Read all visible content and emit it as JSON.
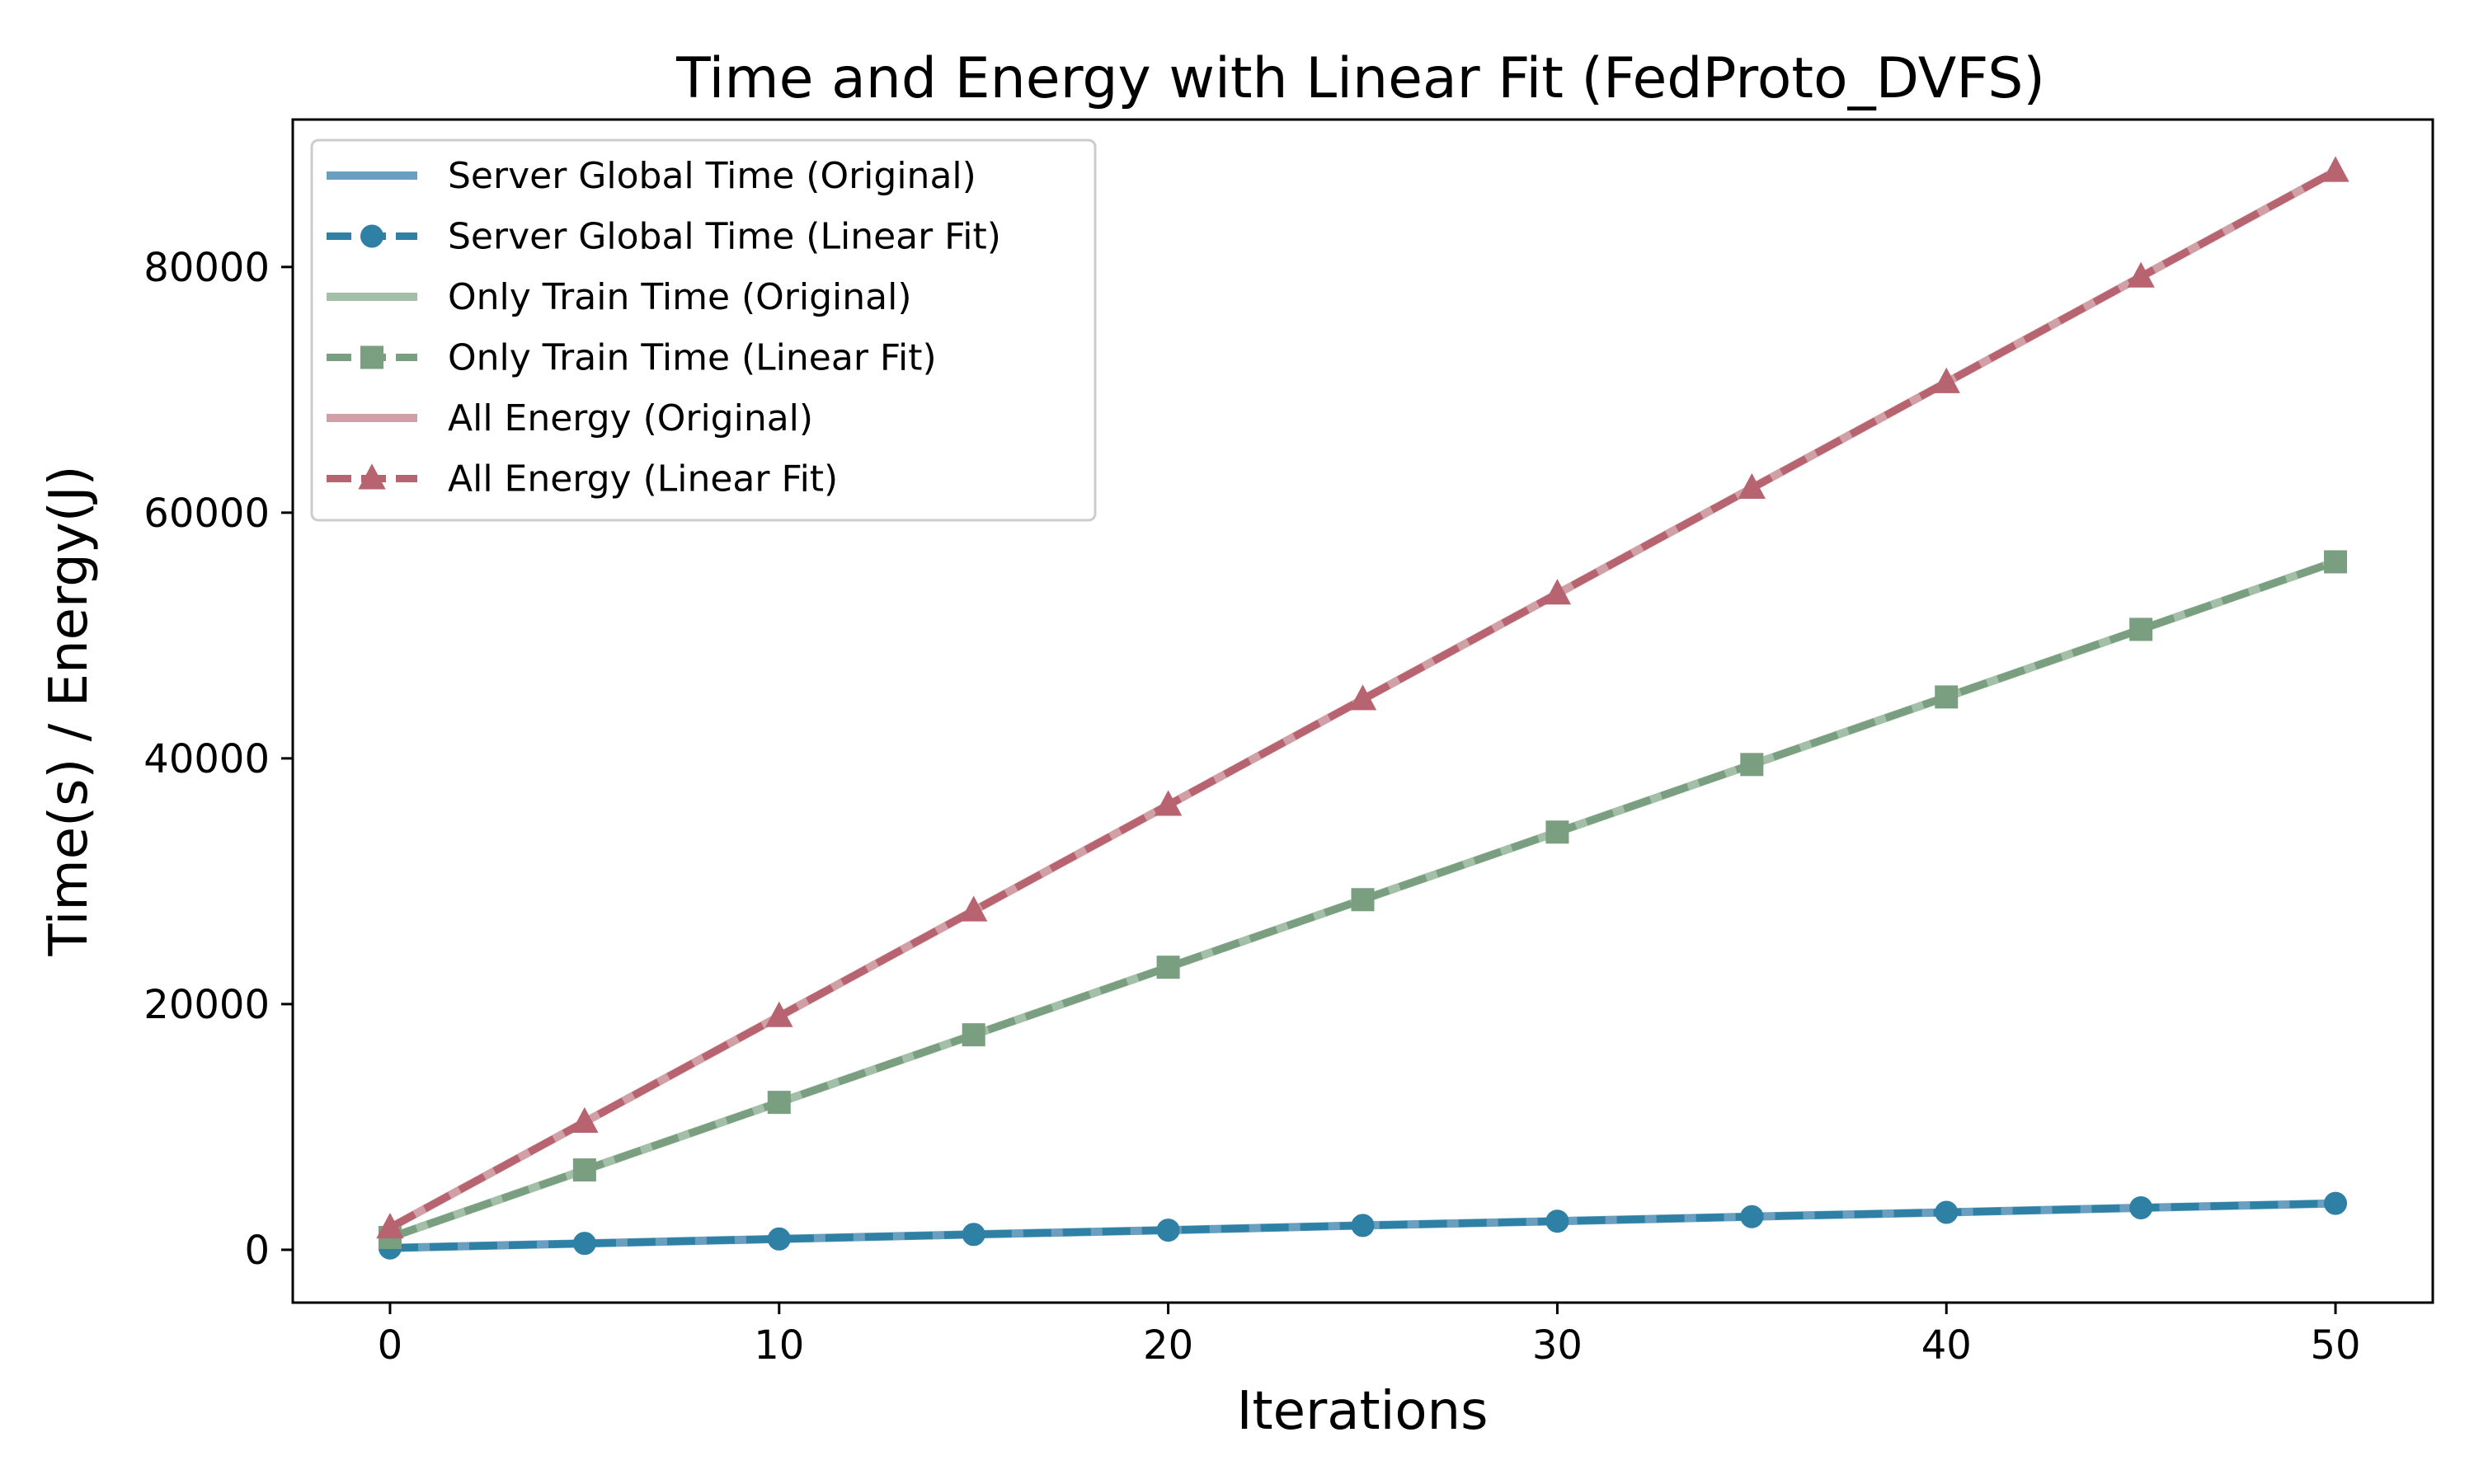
{
  "chart_data": {
    "type": "line",
    "title": "Time and Energy with Linear Fit (FedProto_DVFS)",
    "xlabel": "Iterations",
    "ylabel": "Time(s) / Energy(J)",
    "xlim": [
      -2.5,
      52.5
    ],
    "ylim": [
      -4300,
      92000
    ],
    "xticks": [
      0,
      10,
      20,
      30,
      40,
      50
    ],
    "yticks": [
      0,
      20000,
      40000,
      60000,
      80000
    ],
    "grid": false,
    "legend_position": "top-left",
    "x": [
      0,
      5,
      10,
      15,
      20,
      25,
      30,
      35,
      40,
      45,
      50
    ],
    "series": [
      {
        "name": "Server Global Time (Original)",
        "style": "solid",
        "marker": "none",
        "color": "#6a9fc0",
        "values": [
          150,
          520,
          880,
          1250,
          1600,
          1980,
          2330,
          2700,
          3050,
          3420,
          3780
        ]
      },
      {
        "name": "Server Global Time (Linear Fit)",
        "style": "dashed",
        "marker": "circle",
        "color": "#2e80a4",
        "values": [
          150,
          520,
          880,
          1250,
          1600,
          1980,
          2330,
          2700,
          3050,
          3420,
          3780
        ]
      },
      {
        "name": "Only Train Time (Original)",
        "style": "solid",
        "marker": "none",
        "color": "#a3bfa8",
        "values": [
          1000,
          6500,
          12000,
          17500,
          23000,
          28500,
          34000,
          39500,
          45000,
          50500,
          56000
        ]
      },
      {
        "name": "Only Train Time (Linear Fit)",
        "style": "dashed",
        "marker": "square",
        "color": "#7a9e80",
        "values": [
          1000,
          6500,
          12000,
          17500,
          23000,
          28500,
          34000,
          39500,
          45000,
          50500,
          56000
        ]
      },
      {
        "name": "All Energy (Original)",
        "style": "solid",
        "marker": "none",
        "color": "#d0a0a6",
        "values": [
          1800,
          10400,
          19000,
          27600,
          36200,
          44800,
          53400,
          62000,
          70600,
          79200,
          87800
        ]
      },
      {
        "name": "All Energy (Linear Fit)",
        "style": "dashed",
        "marker": "triangle",
        "color": "#b86470",
        "values": [
          1800,
          10400,
          19000,
          27600,
          36200,
          44800,
          53400,
          62000,
          70600,
          79200,
          87800
        ]
      }
    ]
  }
}
